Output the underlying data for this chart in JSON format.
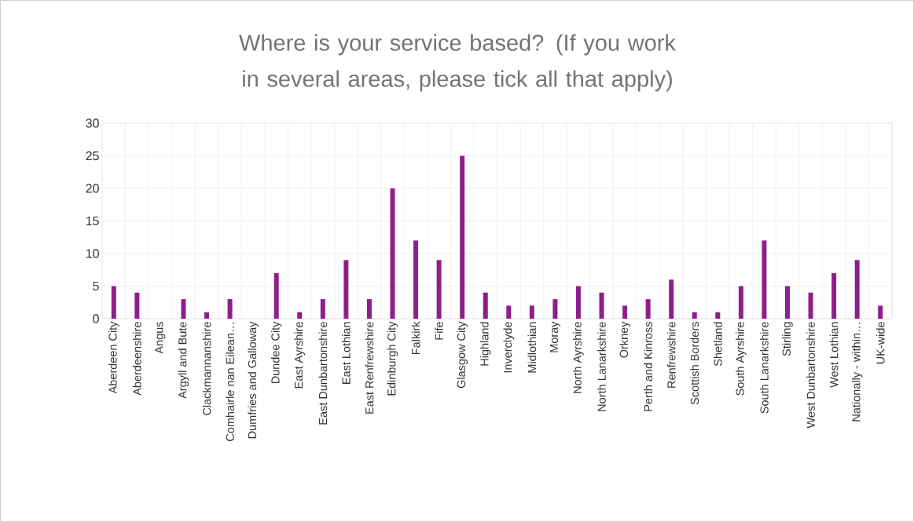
{
  "chart_data": {
    "type": "bar",
    "title": "Where is your service based? (If you work in several areas, please tick all that apply)",
    "categories": [
      "Aberdeen City",
      "Aberdeenshire",
      "Angus",
      "Argyll and Bute",
      "Clackmannanshire",
      "Comhairle nan Eilean…",
      "Dumfries and Galloway",
      "Dundee City",
      "East Ayrshire",
      "East Dunbartonshire",
      "East Lothian",
      "East Renfrewshire",
      "Edinburgh City",
      "Falkirk",
      "Fife",
      "Glasgow City",
      "Highland",
      "Inverclyde",
      "Midlothian",
      "Moray",
      "North Ayrshire",
      "North Lanarkshire",
      "Orkney",
      "Perth and Kinross",
      "Renfrewshire",
      "Scottish Borders",
      "Shetland",
      "South Ayrshire",
      "South Lanarkshire",
      "Stirling",
      "West Dunbartonshire",
      "West Lothian",
      "Nationally - within…",
      "UK-wide"
    ],
    "values": [
      5,
      4,
      0,
      3,
      1,
      3,
      0,
      7,
      1,
      3,
      9,
      3,
      20,
      12,
      9,
      25,
      4,
      2,
      2,
      3,
      5,
      4,
      2,
      3,
      6,
      1,
      1,
      5,
      12,
      5,
      4,
      7,
      9,
      2
    ],
    "color": "#8e1e8e",
    "ylim": [
      0,
      30
    ],
    "yticks": [
      0,
      5,
      10,
      15,
      20,
      25,
      30
    ],
    "grid": true
  }
}
